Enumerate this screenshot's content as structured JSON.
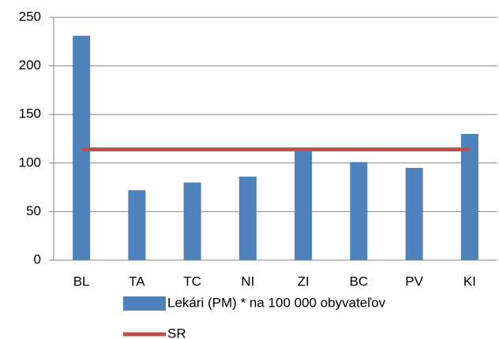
{
  "chart_data": {
    "type": "bar",
    "categories": [
      "BL",
      "TA",
      "TC",
      "NI",
      "ZI",
      "BC",
      "PV",
      "KI"
    ],
    "series": [
      {
        "name": "Lekári (PM) * na 100 000 obyvateľov",
        "color": "#4f81bd",
        "type": "bar",
        "values": [
          231,
          72,
          80,
          86,
          114,
          101,
          95,
          130
        ]
      },
      {
        "name": "SR",
        "color": "#c0504d",
        "type": "line",
        "values": [
          114,
          114,
          114,
          114,
          114,
          114,
          114,
          114
        ]
      }
    ],
    "ylim": [
      0,
      250
    ],
    "yticks": [
      0,
      50,
      100,
      150,
      200,
      250
    ],
    "grid": true,
    "legend": "bottom"
  }
}
